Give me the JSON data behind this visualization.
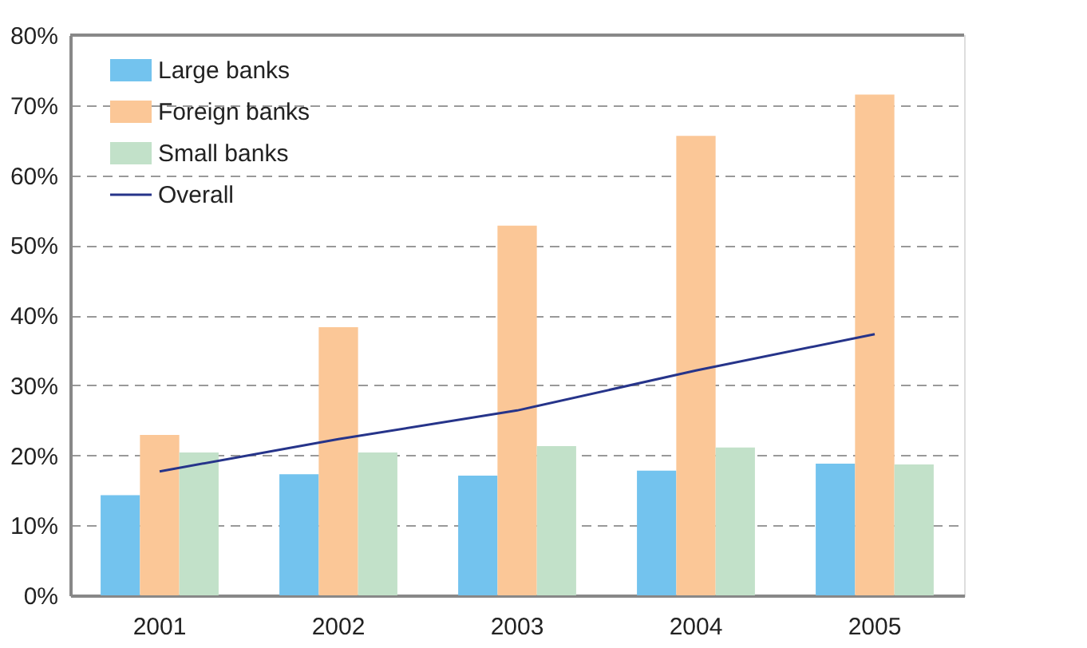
{
  "chart_data": {
    "type": "bar",
    "categories": [
      "2001",
      "2002",
      "2003",
      "2004",
      "2005"
    ],
    "series": [
      {
        "name": "Large banks",
        "color": "#73c3ee",
        "values": [
          14.3,
          17.3,
          17.1,
          17.8,
          18.8
        ]
      },
      {
        "name": "Foreign banks",
        "color": "#fbc797",
        "values": [
          22.9,
          38.3,
          52.8,
          65.6,
          71.5
        ]
      },
      {
        "name": "Small banks",
        "color": "#c2e1c9",
        "values": [
          20.4,
          20.4,
          21.3,
          21.1,
          18.7
        ]
      },
      {
        "name": "Overall",
        "color": "#26348a",
        "type": "line",
        "values": [
          17.7,
          22.3,
          26.4,
          32.1,
          37.3
        ]
      }
    ],
    "ylim": [
      0,
      80
    ],
    "yticks": [
      {
        "value": 0,
        "label": "0%"
      },
      {
        "value": 10,
        "label": "10%"
      },
      {
        "value": 20,
        "label": "20%"
      },
      {
        "value": 30,
        "label": "30%"
      },
      {
        "value": 40,
        "label": "40%"
      },
      {
        "value": 50,
        "label": "50%"
      },
      {
        "value": 60,
        "label": "60%"
      },
      {
        "value": 70,
        "label": "70%"
      },
      {
        "value": 80,
        "label": "80%"
      }
    ],
    "grid": "y",
    "legend": "top left"
  }
}
